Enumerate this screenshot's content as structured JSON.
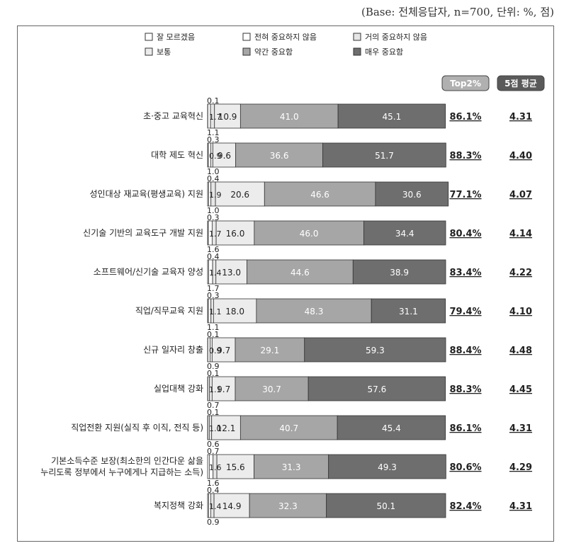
{
  "base_note": "(Base: 전체응답자, n=700, 단위: %, 점)",
  "chart_data": {
    "type": "bar",
    "stacked": true,
    "orientation": "horizontal",
    "legend_placement": "top",
    "categories": [
      [
        "초·중고 교육혁신"
      ],
      [
        "대학 제도 혁신"
      ],
      [
        "성인대상 재교육(평생교육) 지원"
      ],
      [
        "신기술 기반의 교육도구 개발 지원"
      ],
      [
        "소프트웨어/신기술 교육자 양성"
      ],
      [
        "직업/직무교육 지원"
      ],
      [
        "신규 일자리 창출"
      ],
      [
        "실업대책 강화"
      ],
      [
        "직업전환 지원(실직 후 이직, 전직 등)"
      ],
      [
        "기본소득수준 보장(최소한의 인간다운 삶을",
        "누리도록 정부에서 누구에게나 지급하는 소득)"
      ],
      [
        "복지정책 강화"
      ]
    ],
    "series": [
      {
        "name": "잘 모르겠음",
        "color": "#ffffff",
        "values": [
          0.1,
          0.3,
          0.4,
          0.3,
          0.4,
          0.3,
          0.1,
          0.1,
          0.1,
          0.7,
          0.4
        ]
      },
      {
        "name": "전혀 중요하지 않음",
        "color": "#ffffff",
        "values": [
          1.1,
          1.0,
          1.0,
          1.6,
          1.7,
          1.1,
          0.9,
          0.7,
          0.6,
          1.6,
          0.9
        ]
      },
      {
        "name": "거의 중요하지 않음",
        "color": "#e6e6e6",
        "values": [
          1.7,
          0.9,
          1.9,
          1.7,
          1.4,
          1.1,
          0.9,
          1.1,
          1.0,
          1.6,
          1.4
        ]
      },
      {
        "name": "보통",
        "color": "#ececec",
        "values": [
          10.9,
          9.6,
          20.6,
          16.0,
          13.0,
          18.0,
          9.7,
          9.7,
          12.1,
          15.6,
          14.9
        ]
      },
      {
        "name": "약간 중요함",
        "color": "#a6a6a6",
        "values": [
          41.0,
          36.6,
          46.6,
          46.0,
          44.6,
          48.3,
          29.1,
          30.7,
          40.7,
          31.3,
          32.3
        ]
      },
      {
        "name": "매우 중요함",
        "color": "#6e6e6e",
        "values": [
          45.1,
          51.7,
          30.6,
          34.4,
          38.9,
          31.1,
          59.3,
          57.6,
          45.4,
          49.3,
          50.1
        ]
      }
    ],
    "value_labels": {
      "잘 모르겠음": [
        "0.1",
        "0.3",
        "0.4",
        "0.3",
        "0.4",
        "0.3",
        "0.1",
        "0.1",
        "0.1",
        "0.7",
        "0.4"
      ],
      "전혀 중요하지 않음": [
        "1.1",
        "1.0",
        "1.0",
        "1.6",
        "1.7",
        "1.1",
        "0.9",
        "0.7",
        "0.6",
        "1.6",
        "0.9"
      ],
      "거의 중요하지 않음": [
        "1.7",
        "0.9",
        "1.9",
        "1.7",
        "1.4",
        "1.1",
        "0.9",
        "1.1",
        "1.0",
        "1.6",
        "1.4"
      ]
    },
    "columns": [
      {
        "header": "Top2%",
        "values": [
          "86.1%",
          "88.3%",
          "77.1%",
          "80.4%",
          "83.4%",
          "79.4%",
          "88.4%",
          "88.3%",
          "86.1%",
          "80.6%",
          "82.4%"
        ]
      },
      {
        "header": "5점 평균",
        "values": [
          "4.31",
          "4.40",
          "4.07",
          "4.14",
          "4.22",
          "4.10",
          "4.48",
          "4.45",
          "4.31",
          "4.29",
          "4.31"
        ]
      }
    ],
    "xlim": [
      0,
      100
    ]
  }
}
